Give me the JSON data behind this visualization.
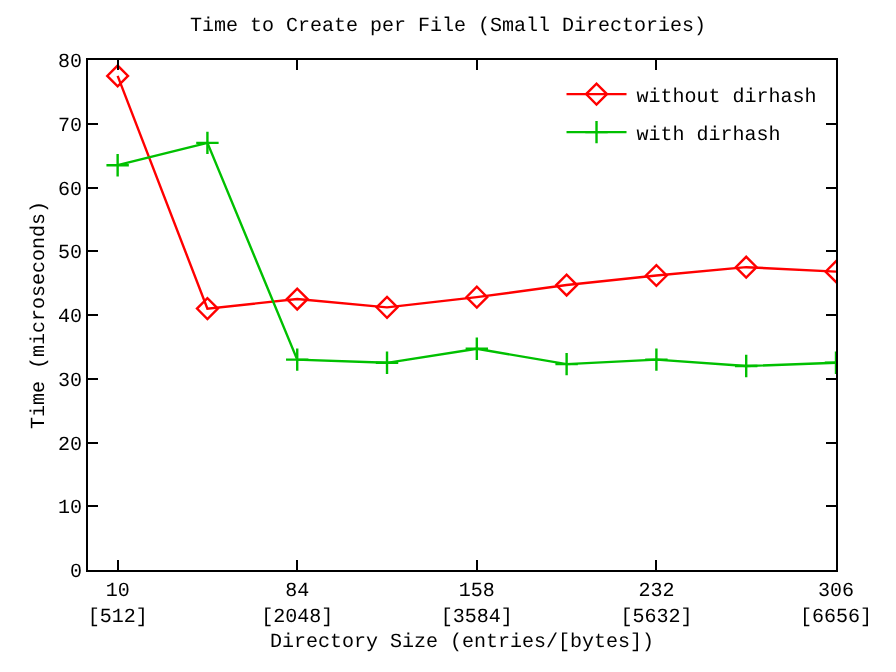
{
  "chart_data": {
    "type": "line",
    "title": "Time to Create per File (Small Directories)",
    "xlabel": "Directory Size (entries/[bytes])",
    "ylabel": "Time (microseconds)",
    "categories": [
      "10\n[512]",
      null,
      "84\n[2048]",
      null,
      "158\n[3584]",
      null,
      "232\n[5632]",
      null,
      "306\n[6656]"
    ],
    "series": [
      {
        "name": "without dirhash",
        "color": "#ff0000",
        "marker": "diamond",
        "values": [
          77.5,
          41,
          42.5,
          41.2,
          42.8,
          44.7,
          46.2,
          47.5,
          46.8
        ]
      },
      {
        "name": "with dirhash",
        "color": "#00c000",
        "marker": "cross",
        "values": [
          63.5,
          67,
          33,
          32.5,
          34.7,
          32.3,
          33,
          32,
          32.5
        ]
      }
    ],
    "ylim": [
      0,
      80
    ],
    "yticks": [
      0,
      10,
      20,
      30,
      40,
      50,
      60,
      70,
      80
    ],
    "legend": "top right",
    "line_style": "solid"
  }
}
